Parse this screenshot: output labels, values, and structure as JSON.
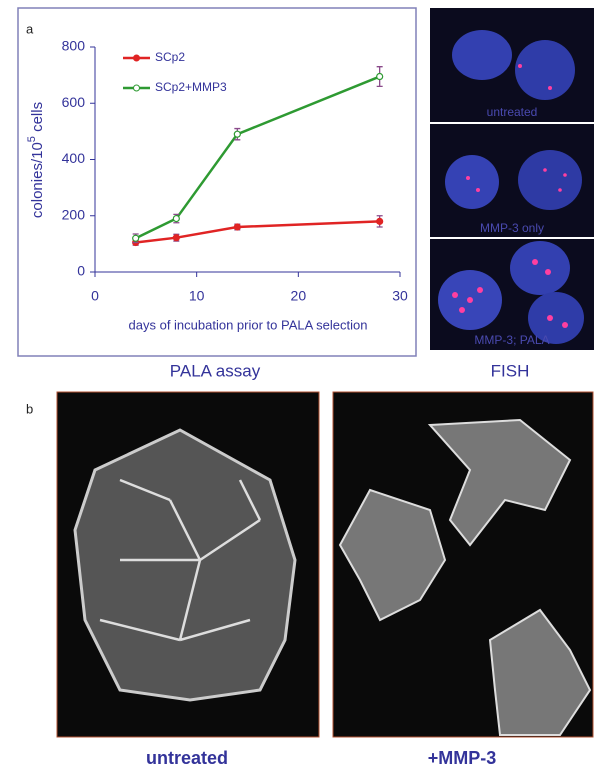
{
  "panel_a": {
    "label": "a",
    "chart_caption": "PALA assay",
    "fish_caption": "FISH",
    "fish_panels": [
      "untreated",
      "MMP-3 only",
      "MMP-3; PALA"
    ]
  },
  "chart_data": {
    "type": "line",
    "ylabel": {
      "text": "colonies/10",
      "sup": "5",
      "unit": " cells"
    },
    "xlabel": "days of incubation prior to PALA selection",
    "x": [
      4,
      8,
      14,
      28
    ],
    "series": [
      {
        "name": "SCp2",
        "color": "#e02424",
        "values": [
          105,
          122,
          160,
          180
        ],
        "errors": [
          10,
          12,
          10,
          20
        ]
      },
      {
        "name": "SCp2+MMP3",
        "color": "#2e9a32",
        "values": [
          120,
          190,
          490,
          695
        ],
        "errors": [
          15,
          15,
          20,
          35
        ]
      }
    ],
    "xlim": [
      0,
      30
    ],
    "xticks": [
      0,
      10,
      20,
      30
    ],
    "ylim": [
      0,
      800
    ],
    "yticks": [
      0,
      200,
      400,
      600,
      800
    ],
    "legend": "upper left"
  },
  "panel_b": {
    "label": "b",
    "captions": [
      "untreated",
      "+MMP-3"
    ]
  }
}
